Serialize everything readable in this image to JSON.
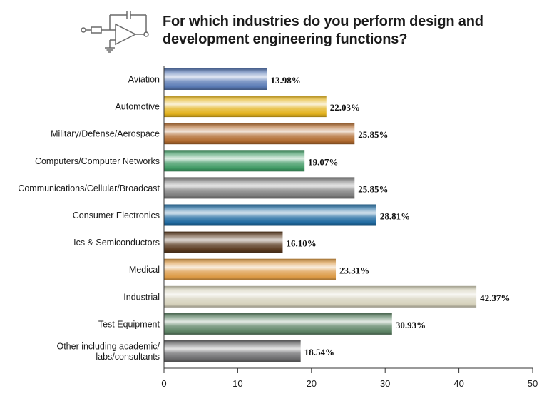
{
  "title_lines": [
    "For which industries do you perform design and",
    "development engineering functions?"
  ],
  "chart_data": {
    "type": "bar",
    "orientation": "horizontal",
    "title": "For which industries do you perform design and development engineering functions?",
    "categories": [
      [
        "Aviation"
      ],
      [
        "Automotive"
      ],
      [
        "Military/Defense/Aerospace"
      ],
      [
        "Computers/Computer Networks"
      ],
      [
        "Communications/Cellular/Broadcast"
      ],
      [
        "Consumer Electronics"
      ],
      [
        "Ics & Semiconductors"
      ],
      [
        "Medical"
      ],
      [
        "Industrial"
      ],
      [
        "Test Equipment"
      ],
      [
        "Other including academic/",
        "labs/consultants"
      ]
    ],
    "values": [
      13.98,
      22.03,
      25.85,
      19.07,
      25.85,
      28.81,
      16.1,
      23.31,
      42.37,
      30.93,
      18.54
    ],
    "data_labels": [
      "13.98%",
      "22.03%",
      "25.85%",
      "19.07%",
      "25.85%",
      "28.81%",
      "16.10%",
      "23.31%",
      "42.37%",
      "30.93%",
      "18.54%"
    ],
    "xticks": [
      "0",
      "10",
      "20",
      "30",
      "40",
      "50"
    ],
    "xlim": [
      0,
      50
    ],
    "bar_colors": [
      "#5a7bb5",
      "#e3b31f",
      "#b06a2e",
      "#3f9a64",
      "#7d7d7d",
      "#1f6aa0",
      "#5a3a1f",
      "#dc9a45",
      "#d6d2bc",
      "#5e8466",
      "#6e6e70"
    ],
    "xlabel": "",
    "ylabel": "",
    "grid": false
  }
}
